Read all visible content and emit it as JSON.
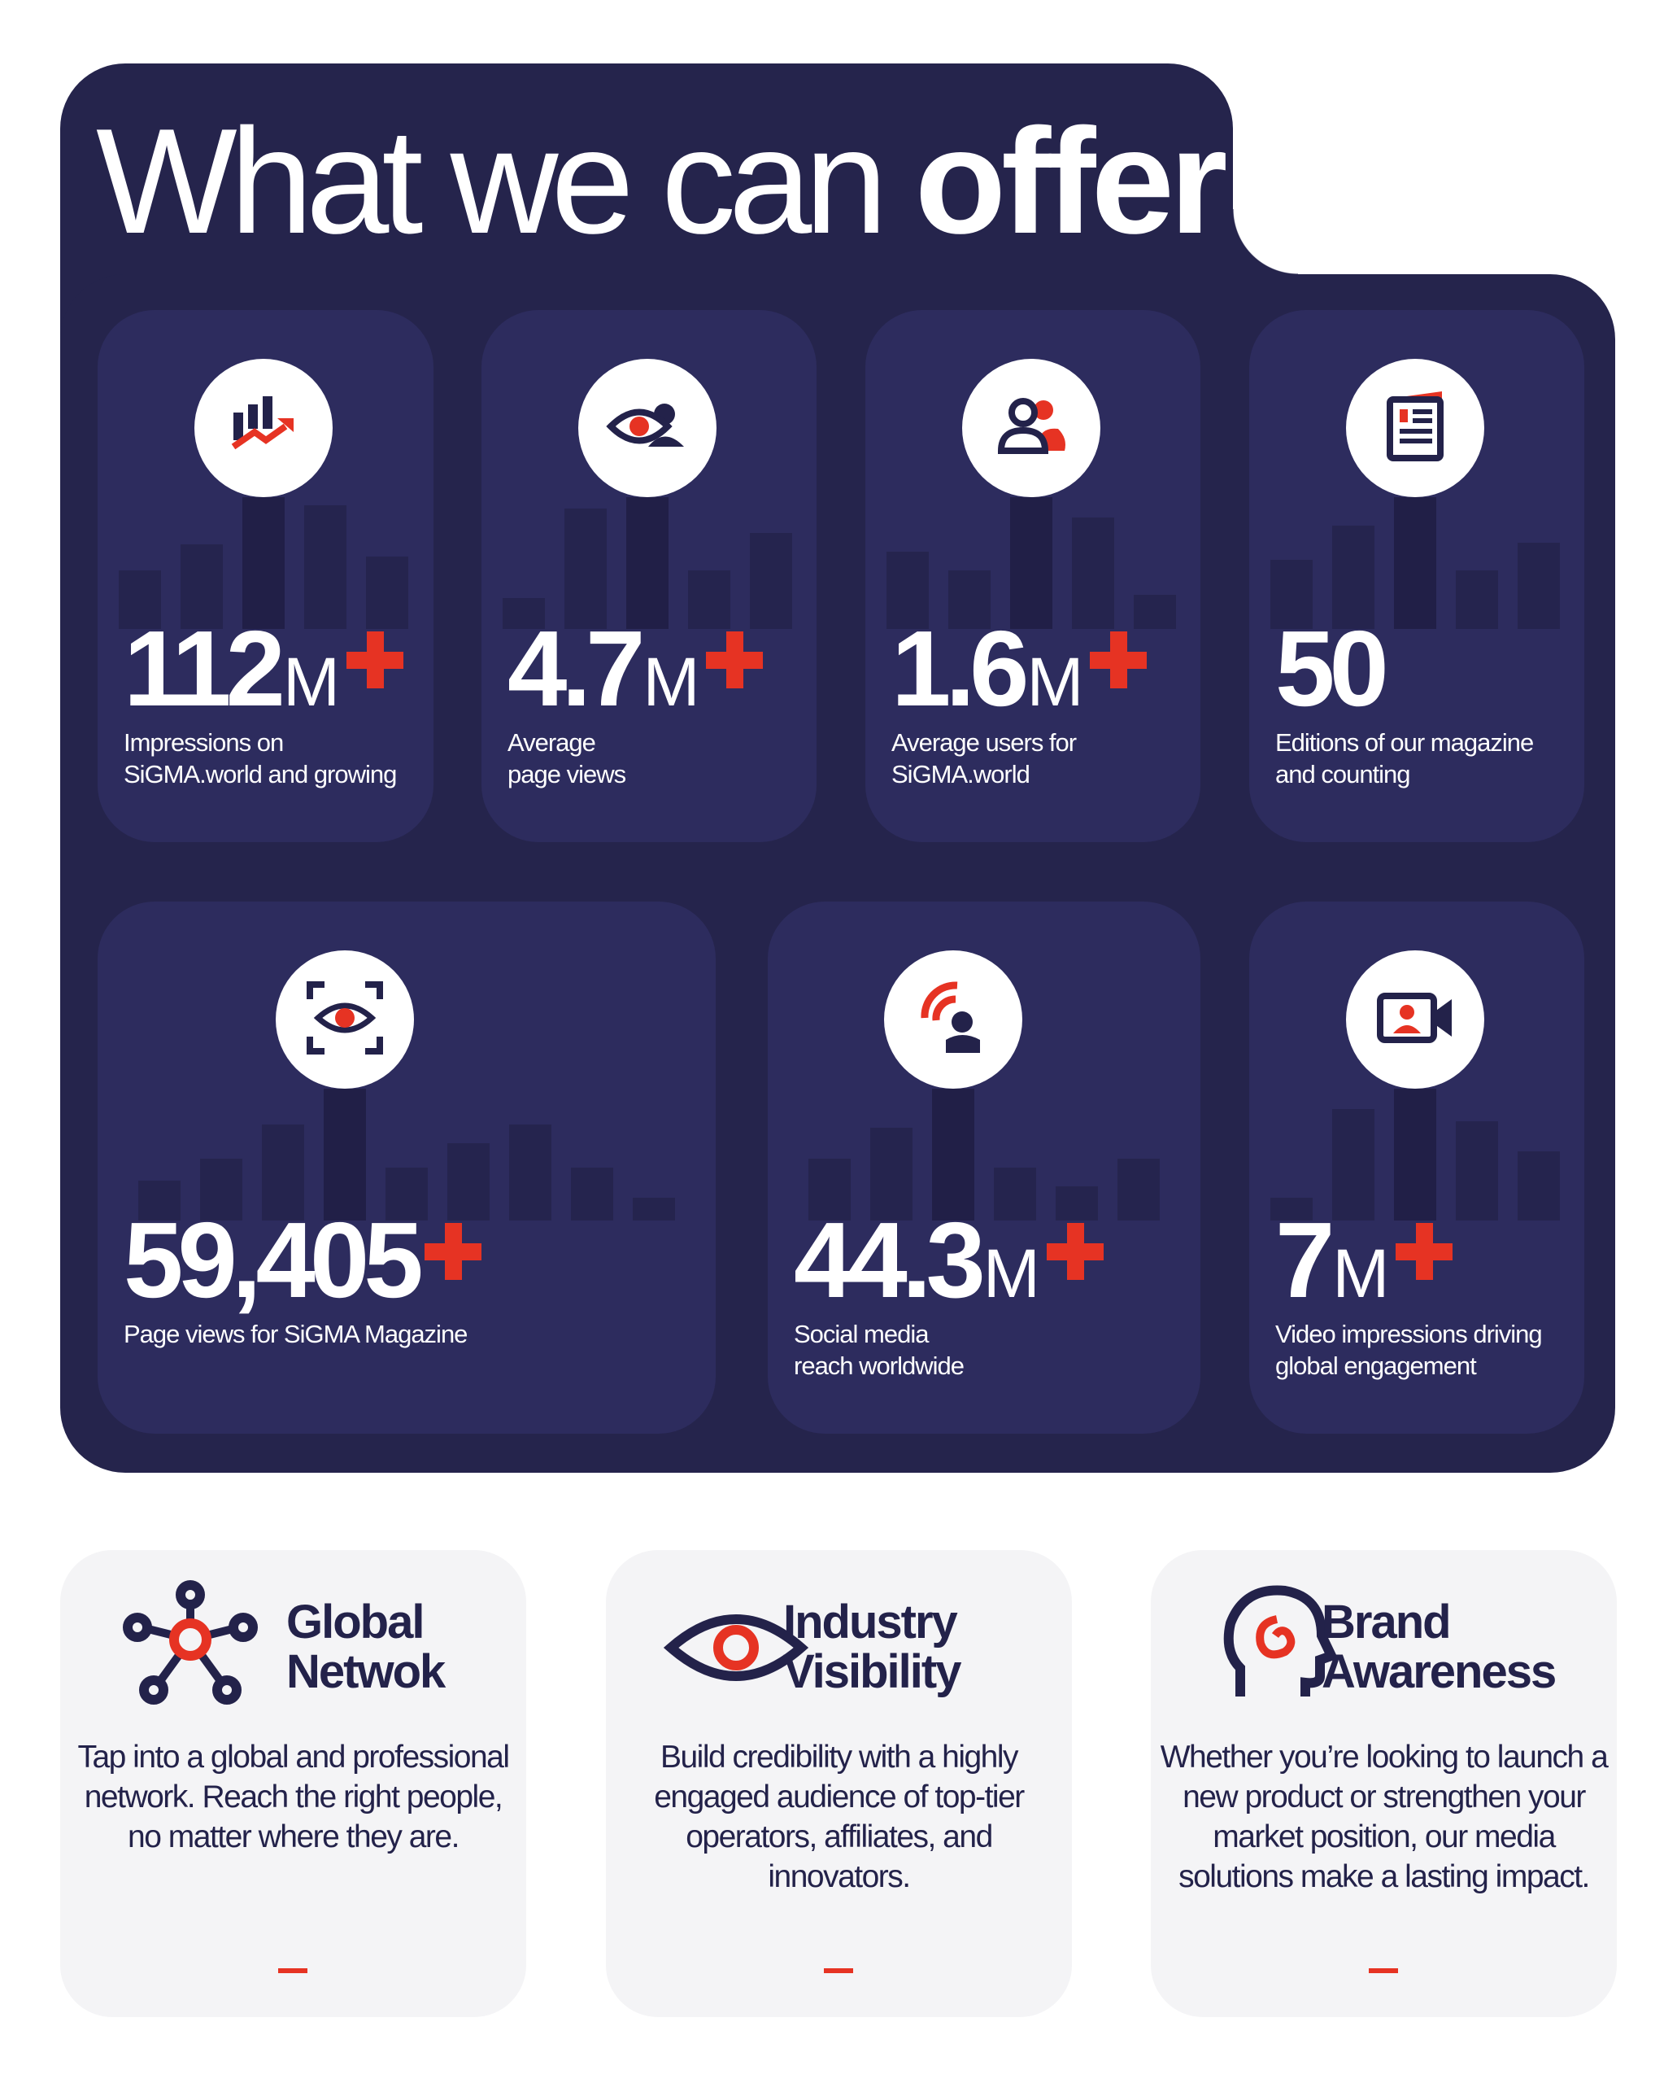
{
  "title": {
    "light": "What we can ",
    "bold": "offer"
  },
  "colors": {
    "panel": "#25244c",
    "card": "#2d2c5e",
    "accent": "#e63323",
    "text_dark": "#23224a",
    "light_card": "#f4f4f6"
  },
  "stats": [
    {
      "value": "112",
      "unit": "M",
      "plus": true,
      "label": "Impressions on\nSiGMA.world and growing",
      "icon": "chart-growth-icon"
    },
    {
      "value": "4.7",
      "unit": "M",
      "plus": true,
      "label": "Average\npage views",
      "icon": "eye-user-icon"
    },
    {
      "value": "1.6",
      "unit": "M",
      "plus": true,
      "label": "Average users for\nSiGMA.world",
      "icon": "users-icon"
    },
    {
      "value": "50",
      "unit": "",
      "plus": false,
      "label": "Editions of our magazine\nand counting",
      "icon": "magazine-icon"
    },
    {
      "value": "59,405",
      "unit": "",
      "plus": true,
      "label": "Page views for SiGMA Magazine",
      "icon": "eye-scan-icon"
    },
    {
      "value": "44.3",
      "unit": "M",
      "plus": true,
      "label": "Social media\nreach worldwide",
      "icon": "broadcast-user-icon"
    },
    {
      "value": "7",
      "unit": "M",
      "plus": true,
      "label": "Video impressions driving\nglobal engagement",
      "icon": "video-user-icon"
    }
  ],
  "benefits": [
    {
      "heading": "Global\nNetwok",
      "body": "Tap into a global and professional network. Reach the right people, no matter where they are.",
      "icon": "network-icon"
    },
    {
      "heading": "Industry\nVisibility",
      "body": "Build credibility with a highly engaged audience of top-tier operators, affiliates, and innovators.",
      "icon": "eye-icon"
    },
    {
      "heading": "Brand\nAwareness",
      "body": "Whether you’re looking to launch a new product or strengthen your market position, our media solutions make a lasting impact.",
      "icon": "head-spiral-icon"
    }
  ]
}
